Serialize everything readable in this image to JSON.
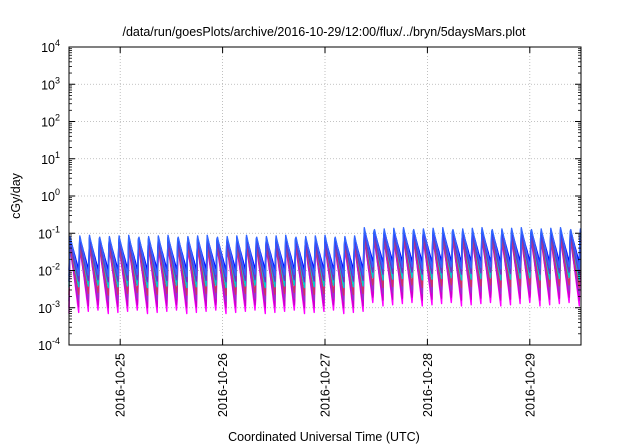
{
  "chart_data": {
    "type": "line",
    "title": "/data/run/goesPlots/archive/2016-10-29/12:00/flux/../bryn/5daysMars.plot",
    "xlabel": "Coordinated Universal Time (UTC)",
    "ylabel": "cGy/day",
    "y_scale": "log",
    "ylim": [
      0.0001,
      10000
    ],
    "y_ticks": [
      {
        "base": "10",
        "exp": "-4"
      },
      {
        "base": "10",
        "exp": "-3"
      },
      {
        "base": "10",
        "exp": "-2"
      },
      {
        "base": "10",
        "exp": "-1"
      },
      {
        "base": "10",
        "exp": "0"
      },
      {
        "base": "10",
        "exp": "1"
      },
      {
        "base": "10",
        "exp": "2"
      },
      {
        "base": "10",
        "exp": "3"
      },
      {
        "base": "10",
        "exp": "4"
      }
    ],
    "xlim": [
      "2016-10-24 12:00",
      "2016-10-29 12:00"
    ],
    "x_ticks": [
      "2016-10-25",
      "2016-10-26",
      "2016-10-27",
      "2016-10-28",
      "2016-10-29"
    ],
    "grid": true,
    "legend": "none",
    "series_colors": [
      "#ff00ff",
      "#cc00cc",
      "#9933cc",
      "#cc3366",
      "#00cccc",
      "#33aacc",
      "#3366ff",
      "#0000ff",
      "#6633cc"
    ],
    "approx_period_hours": 2.3,
    "series_peak_values": [
      0.06,
      0.045,
      0.05,
      0.055,
      0.07,
      0.075,
      0.09,
      0.08,
      0.06
    ],
    "series_trough_values": [
      0.0007,
      0.001,
      0.0015,
      0.0022,
      0.0035,
      0.005,
      0.007,
      0.01,
      0.005
    ],
    "late_segment_start": "2016-10-27 09:00",
    "late_segment_multiplier": 1.6
  }
}
